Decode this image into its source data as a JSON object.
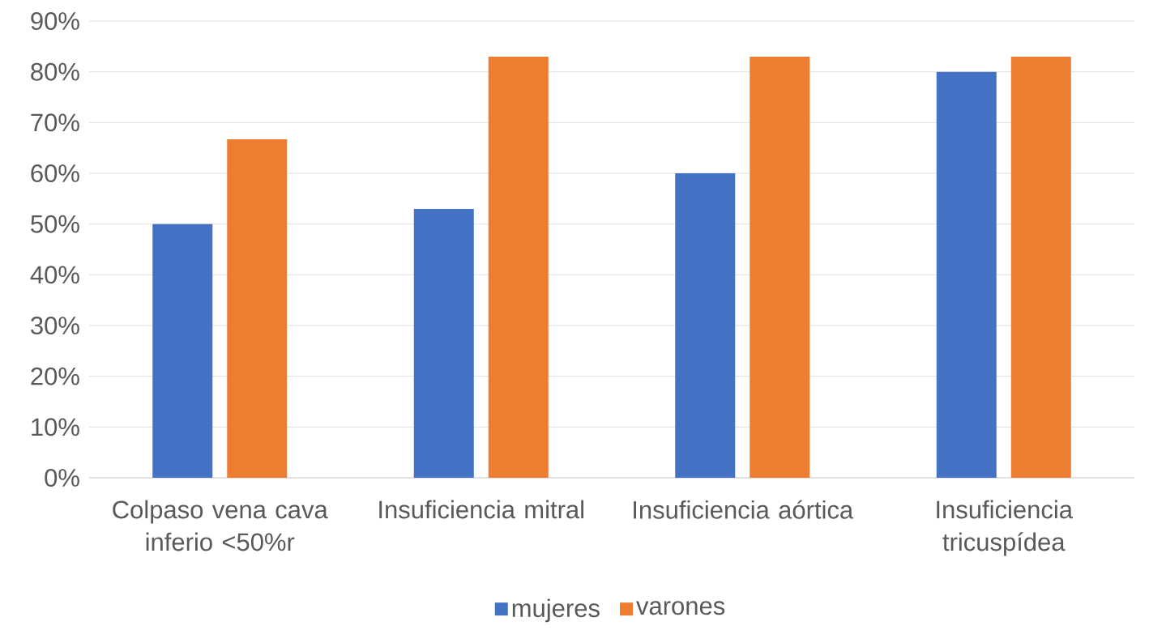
{
  "chart_data": {
    "type": "bar",
    "categories": [
      "Colpaso vena cava inferio  <50%r",
      "Insuficiencia mitral",
      "Insuficiencia aórtica",
      "Insuficiencia tricuspídea"
    ],
    "series": [
      {
        "name": "mujeres",
        "color": "#4472c4",
        "values": [
          50,
          53,
          60,
          80
        ]
      },
      {
        "name": "varones",
        "color": "#ed7d31",
        "values": [
          66.7,
          83,
          83,
          83
        ]
      }
    ],
    "ylim": [
      0,
      90
    ],
    "yticks": [
      {
        "value": 0,
        "label": "0%"
      },
      {
        "value": 10,
        "label": "10%"
      },
      {
        "value": 20,
        "label": "20%"
      },
      {
        "value": 30,
        "label": "30%"
      },
      {
        "value": 40,
        "label": "40%"
      },
      {
        "value": 50,
        "label": "50%"
      },
      {
        "value": 60,
        "label": "60%"
      },
      {
        "value": 70,
        "label": "70%"
      },
      {
        "value": 80,
        "label": "80%"
      },
      {
        "value": 90,
        "label": "90%"
      }
    ],
    "grid": "y",
    "legend": "bottom"
  }
}
